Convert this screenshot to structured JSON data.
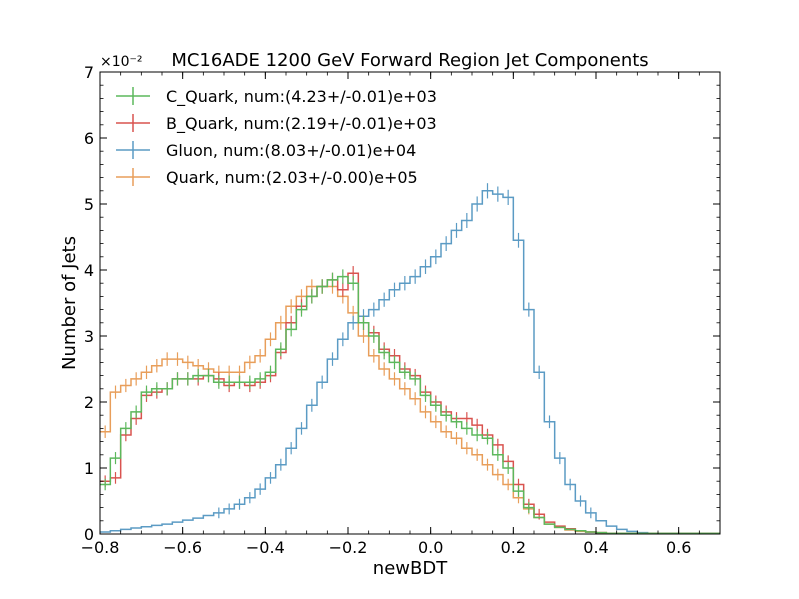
{
  "chart_data": {
    "type": "histogram",
    "title": "MC16ADE 1200 GeV Forward Region Jet Components",
    "xlabel": "newBDT",
    "ylabel": "Number of Jets",
    "y_scale_label": "×10⁻²",
    "xlim": [
      -0.8,
      0.7
    ],
    "ylim": [
      0,
      7
    ],
    "x_ticks": [
      "−0.8",
      "−0.6",
      "−0.4",
      "−0.2",
      "0.0",
      "0.2",
      "0.4",
      "0.6"
    ],
    "x_tick_values": [
      -0.8,
      -0.6,
      -0.4,
      -0.2,
      0.0,
      0.2,
      0.4,
      0.6
    ],
    "y_ticks": [
      "0",
      "1",
      "2",
      "3",
      "4",
      "5",
      "6",
      "7"
    ],
    "y_tick_values": [
      0,
      1,
      2,
      3,
      4,
      5,
      6,
      7
    ],
    "grid": false,
    "legend_position": "top-left",
    "bin_start": -0.8,
    "bin_width": 0.025,
    "series": [
      {
        "name": "C_Quark, num:(4.23+/-0.01)e+03",
        "color": "#5cb85c",
        "errorbars": true,
        "values": [
          0.75,
          1.15,
          1.6,
          1.85,
          2.15,
          2.2,
          2.2,
          2.35,
          2.35,
          2.4,
          2.4,
          2.3,
          2.3,
          2.3,
          2.3,
          2.35,
          2.45,
          2.8,
          3.1,
          3.4,
          3.6,
          3.75,
          3.85,
          3.9,
          3.8,
          3.2,
          3.0,
          2.75,
          2.6,
          2.45,
          2.35,
          2.1,
          1.95,
          1.8,
          1.7,
          1.6,
          1.5,
          1.45,
          1.2,
          1.0,
          0.65,
          0.4,
          0.25,
          0.15,
          0.1,
          0.07,
          0.05,
          0.03,
          0.02,
          0.01,
          0.01,
          0.01,
          0.01,
          0.01,
          0.01,
          0.01,
          0.01,
          0.01,
          0.01,
          0.01
        ]
      },
      {
        "name": "B_Quark, num:(2.19+/-0.01)e+03",
        "color": "#d9534f",
        "errorbars": true,
        "values": [
          0.8,
          0.85,
          1.5,
          1.75,
          2.1,
          2.15,
          2.2,
          2.35,
          2.35,
          2.35,
          2.4,
          2.35,
          2.25,
          2.3,
          2.25,
          2.3,
          2.4,
          2.75,
          3.2,
          3.45,
          3.6,
          3.75,
          3.85,
          3.7,
          3.95,
          3.2,
          3.05,
          2.8,
          2.7,
          2.5,
          2.4,
          2.15,
          2.0,
          1.85,
          1.75,
          1.75,
          1.65,
          1.5,
          1.35,
          1.1,
          0.75,
          0.45,
          0.3,
          0.18,
          0.12,
          0.08,
          0.05,
          0.03,
          0.02,
          0.01,
          0.01,
          0.01,
          0.01,
          0.01,
          0.01,
          0.01,
          0.01,
          0.01,
          0.01,
          0.01
        ]
      },
      {
        "name": "Gluon, num:(8.03+/-0.01)e+04",
        "color": "#5b9bc4",
        "errorbars": true,
        "values": [
          0.03,
          0.05,
          0.07,
          0.09,
          0.11,
          0.13,
          0.15,
          0.18,
          0.21,
          0.24,
          0.28,
          0.32,
          0.38,
          0.45,
          0.55,
          0.68,
          0.85,
          1.05,
          1.3,
          1.6,
          1.95,
          2.3,
          2.65,
          2.95,
          3.2,
          3.3,
          3.4,
          3.55,
          3.7,
          3.8,
          3.9,
          4.05,
          4.2,
          4.4,
          4.6,
          4.75,
          5.0,
          5.2,
          5.15,
          5.1,
          4.45,
          3.4,
          2.45,
          1.7,
          1.15,
          0.75,
          0.5,
          0.32,
          0.2,
          0.12,
          0.07,
          0.04,
          0.02,
          0.01,
          0.01,
          0.01,
          0.01,
          0.01,
          0.01,
          0.01
        ]
      },
      {
        "name": "Quark, num:(2.03+/-0.00)e+05",
        "color": "#e89e5a",
        "errorbars": true,
        "values": [
          1.55,
          2.15,
          2.25,
          2.35,
          2.45,
          2.55,
          2.65,
          2.65,
          2.6,
          2.55,
          2.5,
          2.45,
          2.45,
          2.45,
          2.6,
          2.7,
          2.95,
          3.2,
          3.45,
          3.6,
          3.75,
          3.75,
          3.75,
          3.6,
          3.35,
          3.0,
          2.7,
          2.5,
          2.35,
          2.2,
          2.05,
          1.85,
          1.7,
          1.55,
          1.45,
          1.3,
          1.2,
          1.05,
          0.9,
          0.75,
          0.55,
          0.38,
          0.25,
          0.15,
          0.1,
          0.06,
          0.04,
          0.03,
          0.02,
          0.01,
          0.01,
          0.01,
          0.01,
          0.01,
          0.01,
          0.01,
          0.01,
          0.01,
          0.01,
          0.01
        ]
      }
    ]
  }
}
